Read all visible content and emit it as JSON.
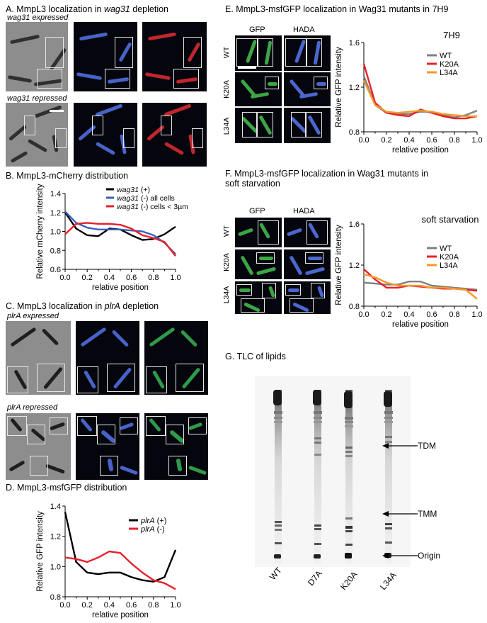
{
  "panelA": {
    "title_prefix": "A. MmpL3 localization in ",
    "title_gene": "wag31",
    "title_suffix": " depletion",
    "row1_label": "wag31 expressed",
    "row2_label": "wag31 repressed"
  },
  "panelB": {
    "title": "B. MmpL3-mCherry distribution",
    "colors": {
      "plus": "#000000",
      "all": "#3a5fbd",
      "small": "#e8202a"
    }
  },
  "panelC": {
    "title_prefix": "C. MmpL3 localization in ",
    "title_gene": "plrA",
    "title_suffix": " depletion",
    "row1_label": "plrA expressed",
    "row2_label": "plrA repressed"
  },
  "panelD": {
    "title": "D. MmpL3-msfGFP distribution"
  },
  "panelE": {
    "title": "E. MmpL3-msfGFP localization in Wag31 mutants in 7H9",
    "col_gfp": "GFP",
    "col_hada": "HADA",
    "rows": [
      "WT",
      "K20A",
      "L34A"
    ]
  },
  "panelF": {
    "title_line1": "F. MmpL3-msfGFP localization in Wag31 mutants in",
    "title_line2": "soft starvation",
    "col_gfp": "GFP",
    "col_hada": "HADA",
    "rows": [
      "WT",
      "K20A",
      "L34A"
    ]
  },
  "panelG": {
    "title": "G. TLC of lipids",
    "lanes": [
      "WT",
      "D7A",
      "K20A",
      "L34A"
    ],
    "markers": [
      "TDM",
      "TMM",
      "Origin"
    ]
  },
  "chart_data": [
    {
      "id": "B",
      "type": "line",
      "title": "",
      "xlabel": "relative position",
      "ylabel": "Relative mCherry intensity",
      "xlim": [
        0,
        1.0
      ],
      "ylim": [
        0.6,
        1.4
      ],
      "xticks": [
        "0.0",
        "0.2",
        "0.4",
        "0.6",
        "0.8",
        "1.0"
      ],
      "yticks": [
        "0.6",
        "0.8",
        "1.0",
        "1.2",
        "1.4"
      ],
      "legend": "top-right",
      "x": [
        0.0,
        0.1,
        0.2,
        0.3,
        0.4,
        0.5,
        0.6,
        0.7,
        0.8,
        0.9,
        1.0
      ],
      "series": [
        {
          "name": "wag31 (+)",
          "legend_gene": "wag31",
          "legend_rest": " (+)",
          "color": "#000000",
          "values": [
            1.2,
            1.03,
            0.96,
            0.95,
            1.03,
            1.02,
            0.96,
            0.91,
            0.92,
            0.97,
            1.05
          ]
        },
        {
          "name": "wag31 (-) all cells",
          "legend_gene": "wag31",
          "legend_rest": " (-) all cells",
          "color": "#3a5fbd",
          "values": [
            1.21,
            1.09,
            1.04,
            1.02,
            1.02,
            1.02,
            1.01,
            1.0,
            0.96,
            0.88,
            0.76
          ]
        },
        {
          "name": "wag31 (-) cells < 3µm",
          "legend_gene": "wag31",
          "legend_rest": " (-) cells < 3µm",
          "color": "#e8202a",
          "values": [
            0.97,
            1.08,
            1.09,
            1.08,
            1.08,
            1.07,
            1.03,
            0.96,
            0.93,
            0.89,
            0.74
          ]
        }
      ]
    },
    {
      "id": "D",
      "type": "line",
      "title": "",
      "xlabel": "relative position",
      "ylabel": "Relative GFP intensity",
      "xlim": [
        0,
        1.0
      ],
      "ylim": [
        0.8,
        1.4
      ],
      "xticks": [
        "0.0",
        "0.2",
        "0.4",
        "0.6",
        "0.8",
        "1.0"
      ],
      "yticks": [
        "0.8",
        "1.0",
        "1.2",
        "1.4"
      ],
      "legend": "top-right",
      "x": [
        0.0,
        0.1,
        0.2,
        0.3,
        0.4,
        0.5,
        0.6,
        0.7,
        0.8,
        0.9,
        1.0
      ],
      "series": [
        {
          "name": "plrA (+)",
          "legend_gene": "plrA",
          "legend_rest": " (+)",
          "color": "#000000",
          "values": [
            1.36,
            1.03,
            0.96,
            0.95,
            0.96,
            0.96,
            0.93,
            0.91,
            0.9,
            0.93,
            1.11
          ]
        },
        {
          "name": "plrA (-)",
          "legend_gene": "plrA",
          "legend_rest": " (-)",
          "color": "#e8202a",
          "values": [
            1.06,
            1.05,
            1.03,
            1.06,
            1.1,
            1.09,
            1.02,
            0.96,
            0.91,
            0.89,
            0.85
          ]
        }
      ]
    },
    {
      "id": "E",
      "type": "line",
      "title": "7H9",
      "xlabel": "relative position",
      "ylabel": "Relative GFP intensity",
      "xlim": [
        0,
        1.0
      ],
      "ylim": [
        0.8,
        1.6
      ],
      "xticks": [
        "0.0",
        "0.2",
        "0.4",
        "0.6",
        "0.8",
        "1.0"
      ],
      "yticks": [
        "0.8",
        "1.2",
        "1.6"
      ],
      "legend": "top-right",
      "x": [
        0.0,
        0.1,
        0.2,
        0.3,
        0.4,
        0.5,
        0.6,
        0.7,
        0.8,
        0.9,
        1.0
      ],
      "series": [
        {
          "name": "WT",
          "color": "#808080",
          "values": [
            1.3,
            1.04,
            0.97,
            0.96,
            0.96,
            0.98,
            0.98,
            0.95,
            0.93,
            0.95,
            0.99
          ]
        },
        {
          "name": "K20A",
          "color": "#e8202a",
          "values": [
            1.41,
            1.06,
            0.97,
            0.95,
            0.94,
            1.0,
            0.97,
            0.94,
            0.92,
            0.92,
            0.94
          ]
        },
        {
          "name": "L34A",
          "color": "#f39a2a",
          "values": [
            1.26,
            1.04,
            0.98,
            0.97,
            0.98,
            0.99,
            0.98,
            0.96,
            0.95,
            0.94,
            0.94
          ]
        }
      ]
    },
    {
      "id": "F",
      "type": "line",
      "title": "soft starvation",
      "xlabel": "relative position",
      "ylabel": "Relative GFP intensity",
      "xlim": [
        0,
        1.0
      ],
      "ylim": [
        0.8,
        1.6
      ],
      "xticks": [
        "0.0",
        "0.2",
        "0.4",
        "0.6",
        "0.8",
        "1.0"
      ],
      "yticks": [
        "0.8",
        "1.2",
        "1.6"
      ],
      "legend": "top-right",
      "x": [
        0.0,
        0.1,
        0.2,
        0.3,
        0.4,
        0.5,
        0.6,
        0.7,
        0.8,
        0.9,
        1.0
      ],
      "series": [
        {
          "name": "WT",
          "color": "#808080",
          "values": [
            1.03,
            1.02,
            1.01,
            1.01,
            1.04,
            1.04,
            1.0,
            0.99,
            0.98,
            0.97,
            0.96
          ]
        },
        {
          "name": "K20A",
          "color": "#e8202a",
          "values": [
            1.16,
            1.06,
            0.98,
            0.98,
            1.0,
            0.99,
            0.98,
            0.97,
            0.97,
            0.96,
            0.95
          ]
        },
        {
          "name": "L34A",
          "color": "#f39a2a",
          "values": [
            1.11,
            1.08,
            1.03,
            1.0,
            1.0,
            1.0,
            0.98,
            0.98,
            0.97,
            0.96,
            0.87
          ]
        }
      ]
    }
  ]
}
